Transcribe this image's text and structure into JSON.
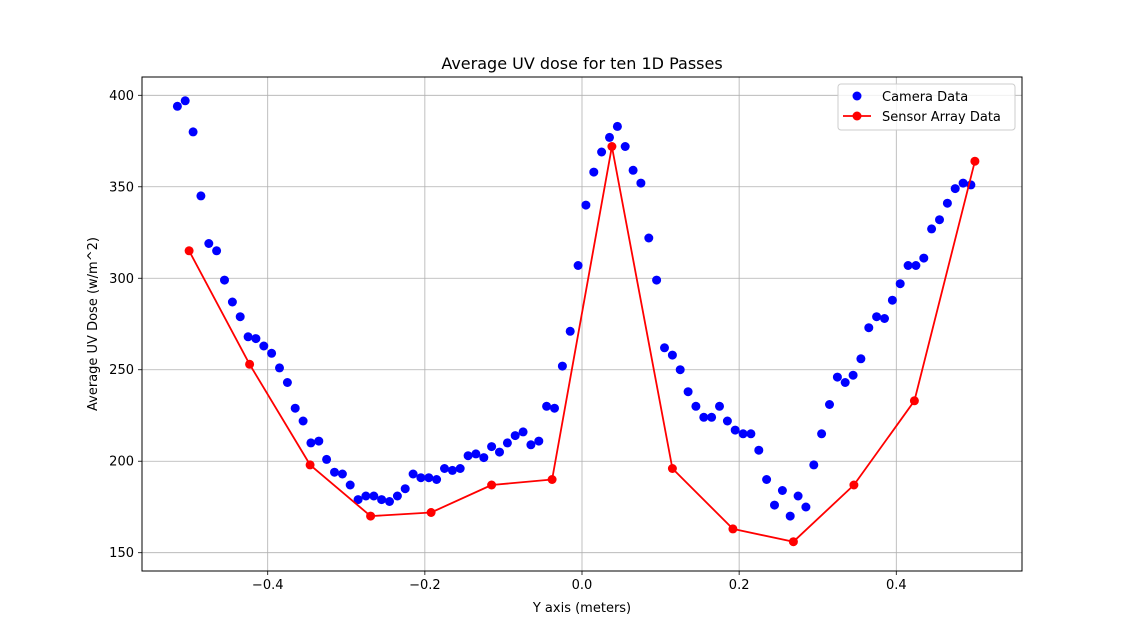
{
  "chart_data": {
    "type": "scatter",
    "title": "Average UV dose for ten 1D Passes",
    "xlabel": "Y axis (meters)",
    "ylabel": "Average UV Dose (w/m^2)",
    "xlim": [
      -0.56,
      0.56
    ],
    "ylim": [
      140,
      410
    ],
    "xticks": [
      -0.4,
      -0.2,
      0.0,
      0.2,
      0.4
    ],
    "xtick_labels": [
      "−0.4",
      "−0.2",
      "0.0",
      "0.2",
      "0.4"
    ],
    "yticks": [
      150,
      200,
      250,
      300,
      350,
      400
    ],
    "ytick_labels": [
      "150",
      "200",
      "250",
      "300",
      "350",
      "400"
    ],
    "grid": true,
    "legend_position": "top-right",
    "series": [
      {
        "name": "Camera Data",
        "style": "markers",
        "color": "#0000ff",
        "x": [
          -0.515,
          -0.505,
          -0.495,
          -0.485,
          -0.475,
          -0.465,
          -0.455,
          -0.445,
          -0.435,
          -0.425,
          -0.415,
          -0.405,
          -0.395,
          -0.385,
          -0.375,
          -0.365,
          -0.355,
          -0.345,
          -0.335,
          -0.325,
          -0.315,
          -0.305,
          -0.295,
          -0.285,
          -0.275,
          -0.265,
          -0.255,
          -0.245,
          -0.235,
          -0.225,
          -0.215,
          -0.205,
          -0.195,
          -0.185,
          -0.175,
          -0.165,
          -0.155,
          -0.145,
          -0.135,
          -0.125,
          -0.115,
          -0.105,
          -0.095,
          -0.085,
          -0.075,
          -0.065,
          -0.055,
          -0.045,
          -0.035,
          -0.025,
          -0.015,
          -0.005,
          0.005,
          0.015,
          0.025,
          0.035,
          0.045,
          0.055,
          0.065,
          0.075,
          0.085,
          0.095,
          0.105,
          0.115,
          0.125,
          0.135,
          0.145,
          0.155,
          0.165,
          0.175,
          0.185,
          0.195,
          0.205,
          0.215,
          0.225,
          0.235,
          0.245,
          0.255,
          0.265,
          0.275,
          0.285,
          0.295,
          0.305,
          0.315,
          0.325,
          0.335,
          0.345,
          0.355,
          0.365,
          0.375,
          0.385,
          0.395,
          0.405,
          0.415,
          0.425,
          0.435,
          0.445,
          0.455,
          0.465,
          0.475,
          0.485,
          0.495
        ],
        "y": [
          394,
          397,
          380,
          345,
          319,
          315,
          299,
          287,
          279,
          268,
          267,
          263,
          259,
          251,
          243,
          229,
          222,
          210,
          211,
          201,
          194,
          193,
          187,
          179,
          181,
          181,
          179,
          178,
          181,
          185,
          193,
          191,
          191,
          190,
          196,
          195,
          196,
          203,
          204,
          202,
          208,
          205,
          210,
          214,
          216,
          209,
          211,
          230,
          229,
          252,
          271,
          307,
          340,
          358,
          369,
          377,
          383,
          372,
          359,
          352,
          322,
          299,
          262,
          258,
          250,
          238,
          230,
          224,
          224,
          230,
          222,
          217,
          215,
          215,
          206,
          190,
          176,
          184,
          170,
          181,
          175,
          198,
          215,
          231,
          246,
          243,
          247,
          256,
          273,
          279,
          278,
          288,
          297,
          307,
          307,
          311,
          327,
          332,
          341,
          349,
          352,
          351
        ]
      },
      {
        "name": "Sensor Array Data",
        "style": "line-markers",
        "color": "#ff0000",
        "x": [
          -0.5,
          -0.423,
          -0.346,
          -0.269,
          -0.192,
          -0.115,
          -0.038,
          0.038,
          0.115,
          0.192,
          0.269,
          0.346,
          0.423,
          0.5
        ],
        "y": [
          315,
          253,
          198,
          170,
          172,
          187,
          190,
          372,
          196,
          163,
          156,
          187,
          233,
          364
        ]
      }
    ]
  }
}
